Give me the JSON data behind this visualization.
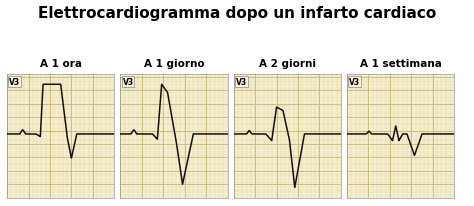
{
  "title": "Elettrocardiogramma dopo un infarto cardiaco",
  "title_fontsize": 11,
  "title_fontweight": "bold",
  "panel_bg": "#f7f2d8",
  "line_color": "#111111",
  "grid_minor_color": "#e0d090",
  "grid_major_color": "#c8b870",
  "outer_bg": "#ffffff",
  "panels": [
    {
      "label": "A 1 ora"
    },
    {
      "label": "A 1 giorno"
    },
    {
      "label": "A 2 giorni"
    },
    {
      "label": "A 1 settimana"
    }
  ]
}
